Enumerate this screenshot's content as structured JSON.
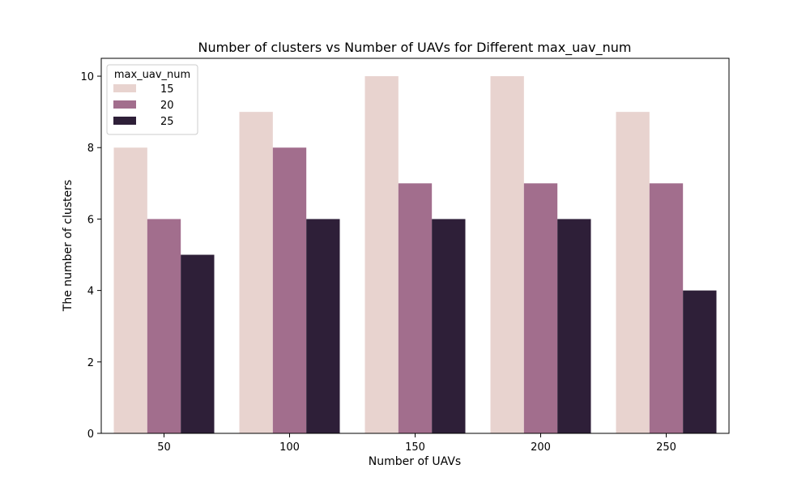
{
  "chart_data": {
    "type": "bar",
    "title": "Number of clusters vs Number of UAVs for Different max_uav_num",
    "xlabel": "Number of UAVs",
    "ylabel": "The number of clusters",
    "categories": [
      "50",
      "100",
      "150",
      "200",
      "250"
    ],
    "series": [
      {
        "name": "15",
        "color": "#e8d3cf",
        "values": [
          8,
          9,
          10,
          10,
          9
        ]
      },
      {
        "name": "20",
        "color": "#a26e8d",
        "values": [
          6,
          8,
          7,
          7,
          7
        ]
      },
      {
        "name": "25",
        "color": "#2e1f38",
        "values": [
          5,
          6,
          6,
          6,
          4
        ]
      }
    ],
    "ylim": [
      0,
      10.5
    ],
    "yticks": [
      0,
      2,
      4,
      6,
      8,
      10
    ],
    "grid": false,
    "legend": {
      "title": "max_uav_num",
      "position": "top-left"
    }
  }
}
